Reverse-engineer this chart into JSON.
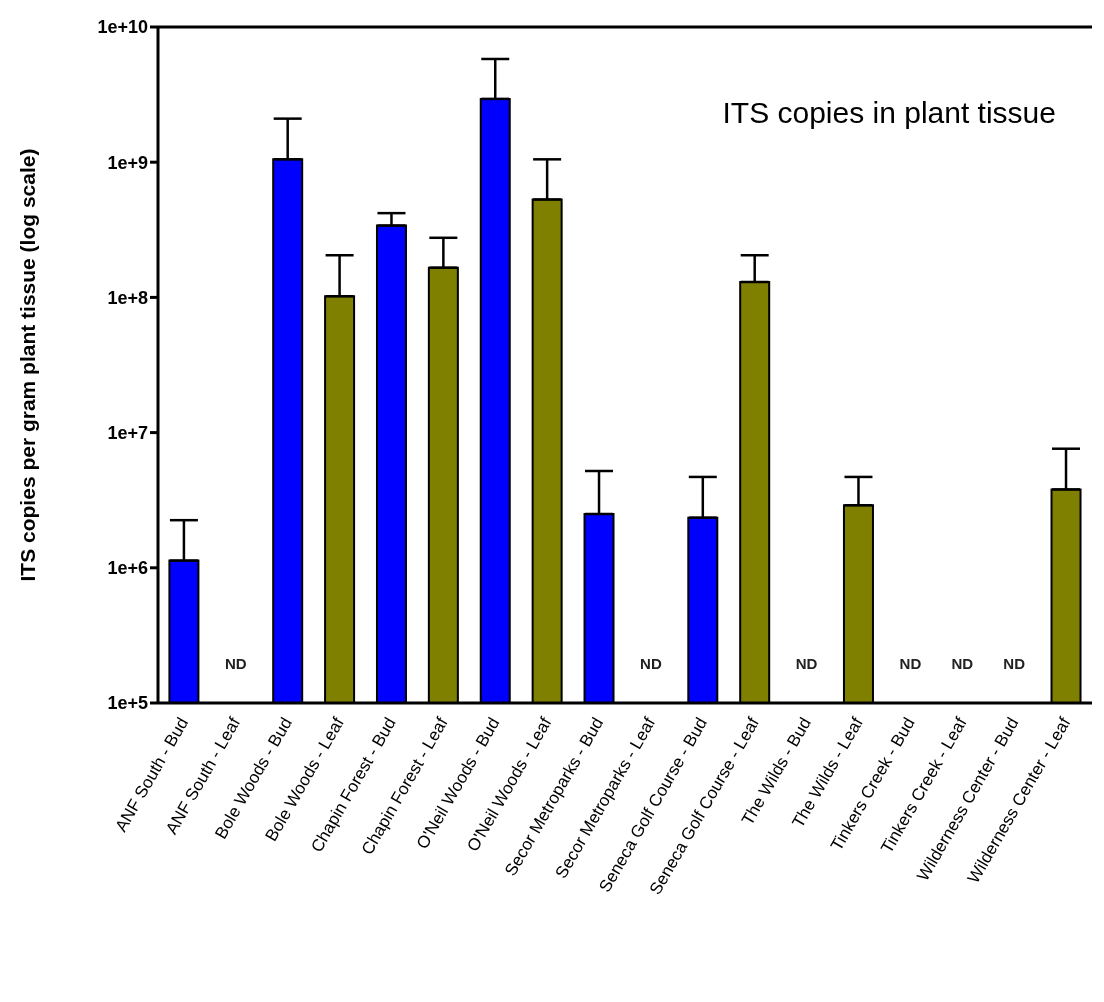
{
  "chart_data": {
    "type": "bar",
    "title": "ITS copies in plant tissue",
    "ylabel": "ITS copies per gram plant tissue (log scale)",
    "categories": [
      "ANF South - Bud",
      "ANF South - Leaf",
      "Bole Woods - Bud",
      "Bole Woods - Leaf",
      "Chapin Forest - Bud",
      "Chapin Forest - Leaf",
      "O'Neil Woods - Bud",
      "O'Neil Woods - Leaf",
      "Secor Metroparks - Bud",
      "Secor Metroparks - Leaf",
      "Seneca Golf Course - Bud",
      "Seneca Golf Course - Leaf",
      "The Wilds - Bud",
      "The Wilds - Leaf",
      "Tinkers Creek - Bud",
      "Tinkers Creek - Leaf",
      "Wilderness Center - Bud",
      "Wilderness Center - Leaf"
    ],
    "values": [
      1130000,
      null,
      1050000000,
      102000000,
      340000000,
      166000000,
      2940000000,
      530000000,
      2500000,
      null,
      2350000,
      130000000,
      null,
      2900000,
      null,
      null,
      null,
      3800000
    ],
    "errors": [
      [
        1130000,
        2250000
      ],
      null,
      [
        1050000000,
        2100000000
      ],
      [
        102000000,
        205000000
      ],
      [
        340000000,
        420000000
      ],
      [
        166000000,
        276000000
      ],
      [
        2940000000,
        5800000000
      ],
      [
        530000000,
        1050000000
      ],
      [
        2500000,
        5200000
      ],
      null,
      [
        2350000,
        4700000
      ],
      [
        130000000,
        205000000
      ],
      null,
      [
        2900000,
        4700000
      ],
      null,
      null,
      null,
      [
        3800000,
        7600000
      ]
    ],
    "colors": [
      "#0000ff",
      "#808000",
      "#0000ff",
      "#808000",
      "#0000ff",
      "#808000",
      "#0000ff",
      "#808000",
      "#0000ff",
      "#808000",
      "#0000ff",
      "#808000",
      "#0000ff",
      "#808000",
      "#0000ff",
      "#808000",
      "#0000ff",
      "#808000"
    ],
    "log": "y",
    "ylim": [
      100000,
      10000000000
    ],
    "yticks": [
      {
        "value": 100000,
        "label": "1e+5"
      },
      {
        "value": 1000000,
        "label": "1e+6"
      },
      {
        "value": 10000000,
        "label": "1e+7"
      },
      {
        "value": 100000000,
        "label": "1e+8"
      },
      {
        "value": 1000000000,
        "label": "1e+9"
      },
      {
        "value": 10000000000,
        "label": "1e+10"
      }
    ],
    "grid": false,
    "legend": false,
    "annotations": [
      "ND",
      "ND",
      "ND",
      "ND",
      "ND",
      "ND"
    ]
  }
}
